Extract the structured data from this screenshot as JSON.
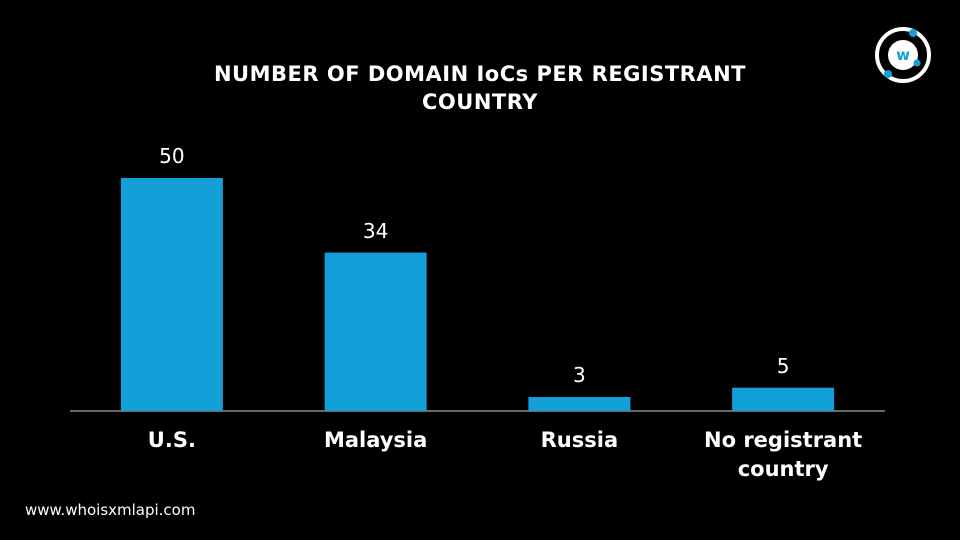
{
  "chart_data": {
    "type": "bar",
    "title": "NUMBER OF DOMAIN IoCs PER REGISTRANT COUNTRY",
    "categories": [
      "U.S.",
      "Malaysia",
      "Russia",
      "No registrant country"
    ],
    "values": [
      50,
      34,
      3,
      5
    ],
    "color": "#139fd8"
  },
  "footer": {
    "website": "www.whoisxmlapi.com"
  }
}
